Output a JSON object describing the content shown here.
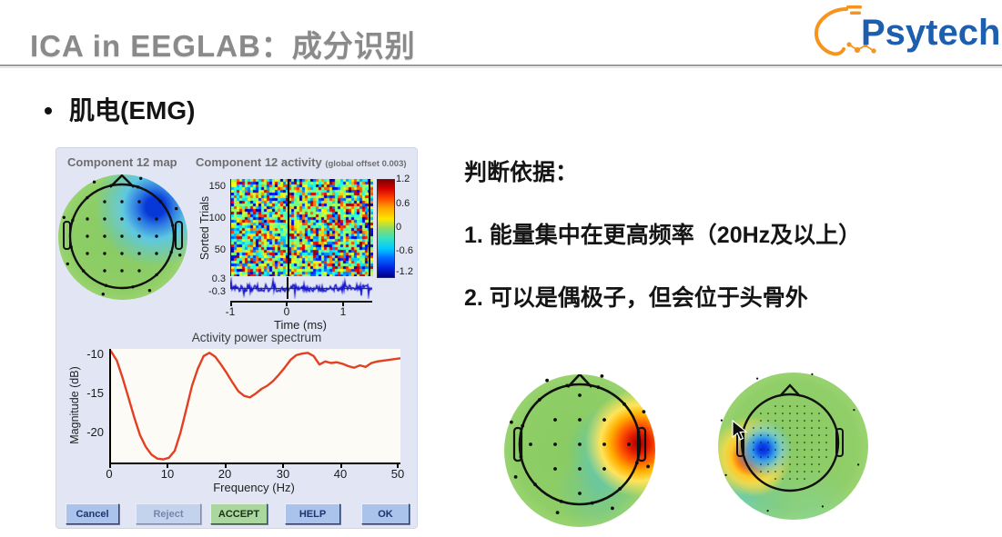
{
  "slide": {
    "title": "ICA in EEGLAB：成分识别",
    "bullet": "肌电(EMG)",
    "logo": {
      "text": "Psytech",
      "brand_blue": "#1d5fae",
      "brand_orange": "#f7941d"
    },
    "criteria_heading": "判断依据：",
    "criteria": [
      "1. 能量集中在更高频率（20Hz及以上）",
      "2. 可以是偶极子，但会位于头骨外"
    ]
  },
  "eeglab_window": {
    "map_title": "Component 12 map",
    "activity_title": "Component 12 activity",
    "activity_offset_note": "(global offset 0.003)",
    "erpimage": {
      "ylabel": "Sorted Trials",
      "yticks": [
        "150",
        "100",
        "50"
      ],
      "trace_yticks": [
        "0.3",
        "-0.3"
      ],
      "xticks": [
        "-1",
        "0",
        "1"
      ],
      "xlabel": "Time (ms)",
      "colorbar_ticks": [
        "1.2",
        "0.6",
        "0",
        "-0.6",
        "-1.2"
      ]
    },
    "spectrum": {
      "title": "Activity power spectrum",
      "ylabel": "Magnitude (dB)",
      "yticks": [
        "-10",
        "-15",
        "-20"
      ],
      "xticks": [
        "0",
        "10",
        "20",
        "30",
        "40",
        "50"
      ],
      "xlabel": "Frequency (Hz)"
    },
    "buttons": {
      "cancel": "Cancel",
      "reject": "Reject",
      "accept": "ACCEPT",
      "help": "HELP",
      "ok": "OK"
    }
  },
  "chart_data": [
    {
      "id": "activity_power_spectrum",
      "type": "line",
      "title": "Activity power spectrum",
      "xlabel": "Frequency (Hz)",
      "ylabel": "Magnitude (dB)",
      "xlim": [
        0,
        50
      ],
      "ylim": [
        -23.8,
        -9.3
      ],
      "xticks": [
        0,
        10,
        20,
        30,
        40,
        50
      ],
      "yticks": [
        -10,
        -15,
        -20
      ],
      "grid": false,
      "color": "#e34023",
      "x": [
        0,
        1,
        2,
        3,
        4,
        5,
        6,
        7,
        8,
        9,
        10,
        11,
        12,
        13,
        14,
        15,
        16,
        17,
        18,
        19,
        20,
        21,
        22,
        23,
        24,
        25,
        26,
        27,
        28,
        29,
        30,
        31,
        32,
        33,
        34,
        35,
        36,
        37,
        38,
        39,
        40,
        41,
        42,
        43,
        44,
        45,
        46,
        47,
        48,
        49,
        50
      ],
      "y": [
        -9.6,
        -10.8,
        -13.0,
        -15.5,
        -18.0,
        -20.3,
        -21.8,
        -22.8,
        -23.3,
        -23.4,
        -23.2,
        -22.3,
        -20.0,
        -17.0,
        -14.0,
        -11.8,
        -10.2,
        -9.8,
        -10.3,
        -11.3,
        -12.4,
        -13.6,
        -14.7,
        -15.3,
        -15.5,
        -15.0,
        -14.4,
        -14.0,
        -13.4,
        -12.6,
        -11.7,
        -10.7,
        -10.1,
        -9.9,
        -9.8,
        -10.2,
        -11.3,
        -10.9,
        -11.1,
        -11.0,
        -11.2,
        -11.5,
        -11.7,
        -11.4,
        -11.6,
        -11.1,
        -10.9,
        -10.8,
        -10.7,
        -10.6,
        -10.5
      ]
    },
    {
      "id": "component12_erpimage",
      "type": "heatmap",
      "title": "Component 12 activity",
      "note": "(global offset 0.003)",
      "xlabel": "Time (ms)",
      "ylabel": "Sorted Trials",
      "x_range_ms": [
        -1,
        1.5
      ],
      "yticks": [
        50,
        100,
        150
      ],
      "color_range": [
        -1.2,
        1.2
      ],
      "content": "unstructured broadband noise across sorted trials; vertical event line at 0 ms; flat noisy average trace bounded by ±0.3 below"
    },
    {
      "id": "topographies",
      "type": "topomap",
      "maps": [
        {
          "name": "component-12-map",
          "features": "blue negative focus at right-frontal edge with adjacent yellow positive spot"
        },
        {
          "name": "emg-example-map-1",
          "features": "strong red focus at right temporal/ear edge with cyan surround inside head"
        },
        {
          "name": "emg-example-map-2",
          "features": "red focus at left ear edge outside dense electrode grid with small adjacent blue focus"
        }
      ]
    }
  ]
}
